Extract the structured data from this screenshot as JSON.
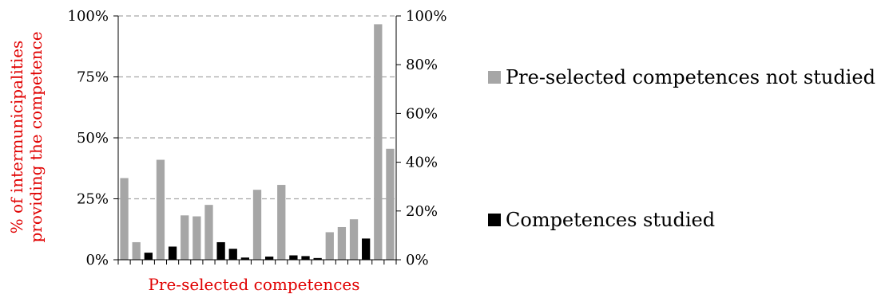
{
  "chart_data": {
    "type": "bar",
    "xlabel": "Pre-selected competences",
    "ylabel": "% of intermunicipalities providing the competence",
    "ylabel_lines": [
      "% of intermunicipalities",
      "providing the competence"
    ],
    "left_axis": {
      "ylim": [
        0,
        100
      ],
      "ticks": [
        "0%",
        "25%",
        "50%",
        "75%",
        "100%"
      ],
      "grid": "dashed"
    },
    "right_axis": {
      "ylim": [
        0,
        100
      ],
      "ticks": [
        "0%",
        "20%",
        "40%",
        "60%",
        "80%",
        "100%"
      ]
    },
    "legend_position": "right",
    "series": [
      {
        "name": "Pre-selected competences not studied",
        "color": "#a6a6a6",
        "axis": "left",
        "values": [
          33.5,
          7.2,
          null,
          41,
          null,
          18.2,
          17.8,
          22.5,
          null,
          null,
          null,
          28.7,
          null,
          30.7,
          null,
          null,
          null,
          11.3,
          13.4,
          16.6,
          null,
          96.6,
          45.5
        ]
      },
      {
        "name": "Competences studied",
        "color": "#000000",
        "axis": "right",
        "values": [
          null,
          null,
          2.9,
          null,
          5.4,
          null,
          null,
          null,
          7.2,
          4.5,
          0.9,
          null,
          1.3,
          null,
          1.8,
          1.5,
          0.7,
          null,
          null,
          null,
          8.7,
          null,
          null
        ]
      }
    ]
  }
}
